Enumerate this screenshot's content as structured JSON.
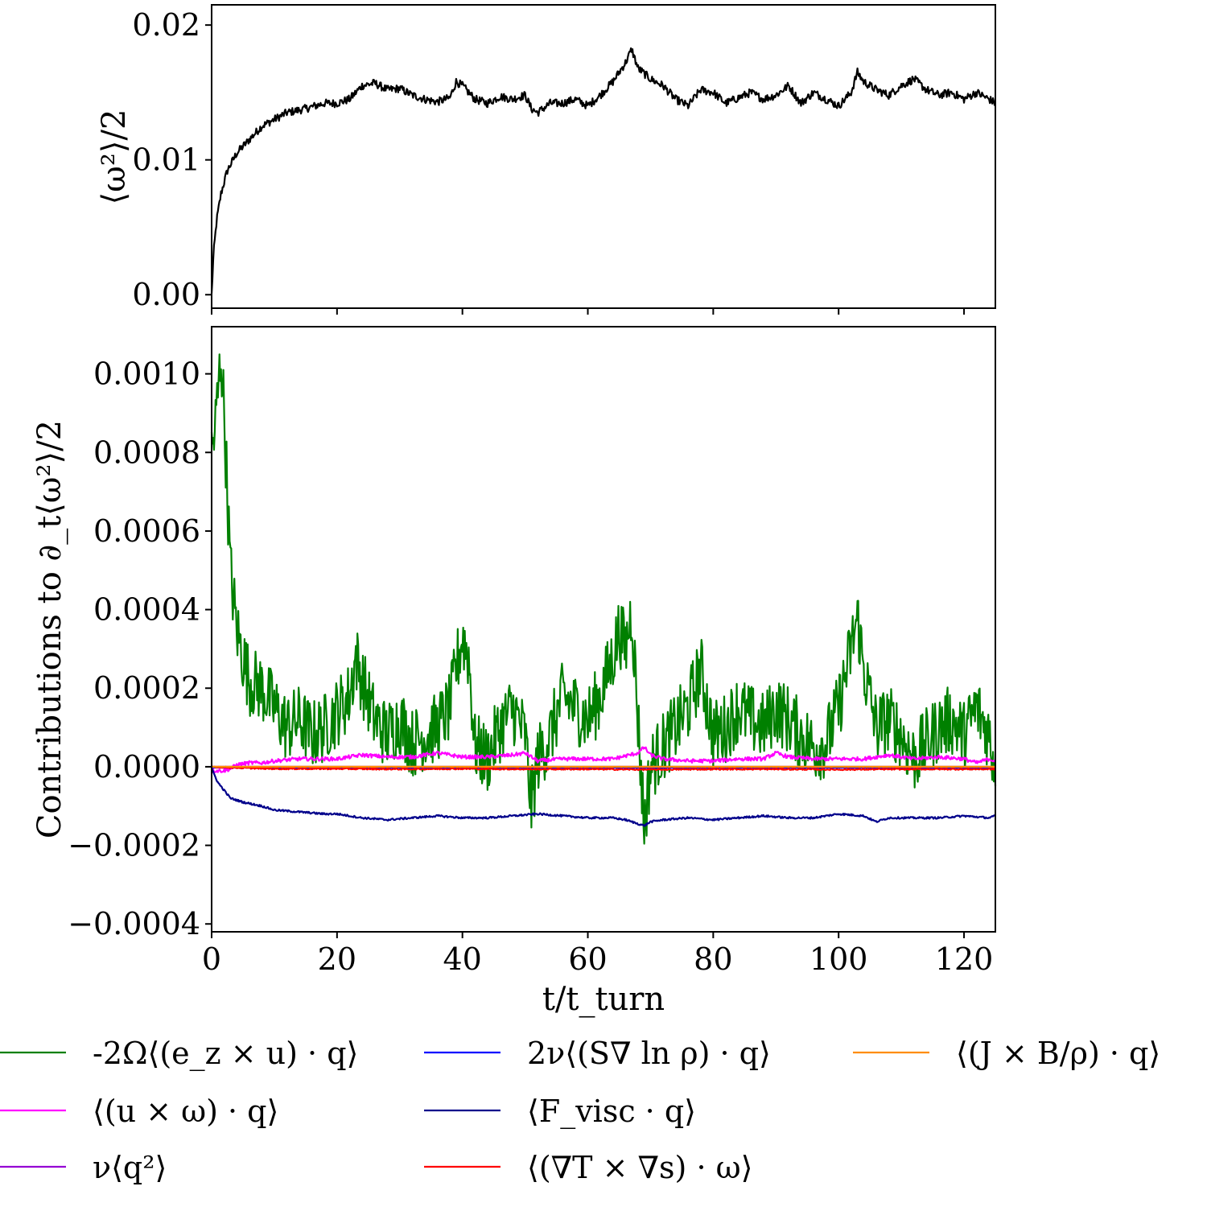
{
  "chart_data": [
    {
      "type": "line",
      "panel": "top",
      "ylabel": "⟨ω²⟩/2",
      "xlim": [
        0,
        125
      ],
      "ylim": [
        -0.001,
        0.0215
      ],
      "yticks": [
        0.0,
        0.01,
        0.02
      ],
      "ytick_labels": [
        "0.00",
        "0.01",
        "0.02"
      ],
      "xticks": [
        0,
        20,
        40,
        60,
        80,
        100,
        120
      ],
      "show_xtick_labels": false,
      "series": [
        {
          "name": "⟨ω²⟩/2",
          "color": "#000000",
          "noise": 0.0005,
          "x": [
            0,
            0.3,
            0.8,
            1.5,
            2.5,
            4,
            6,
            8,
            10,
            12,
            15,
            18,
            20,
            22,
            24,
            26,
            28,
            30,
            32,
            34,
            36,
            38,
            39,
            40,
            42,
            44,
            46,
            48,
            50,
            51,
            52,
            54,
            56,
            58,
            60,
            62,
            64,
            66,
            67,
            68,
            70,
            72,
            74,
            76,
            78,
            80,
            82,
            84,
            86,
            88,
            90,
            92,
            94,
            96,
            98,
            100,
            102,
            103,
            104,
            106,
            108,
            110,
            112,
            114,
            116,
            118,
            120,
            122,
            124,
            125
          ],
          "values": [
            0.0,
            0.003,
            0.0055,
            0.0075,
            0.0092,
            0.0105,
            0.0115,
            0.0125,
            0.013,
            0.0135,
            0.0138,
            0.0142,
            0.0142,
            0.0145,
            0.0155,
            0.0157,
            0.0152,
            0.0153,
            0.0148,
            0.0145,
            0.0143,
            0.0146,
            0.0158,
            0.0155,
            0.0145,
            0.0142,
            0.0147,
            0.0145,
            0.0148,
            0.0138,
            0.0135,
            0.0142,
            0.0142,
            0.0145,
            0.014,
            0.0148,
            0.0158,
            0.0172,
            0.0182,
            0.0168,
            0.016,
            0.0155,
            0.0145,
            0.014,
            0.0152,
            0.015,
            0.0142,
            0.0146,
            0.015,
            0.0145,
            0.0148,
            0.0155,
            0.0142,
            0.015,
            0.0145,
            0.014,
            0.015,
            0.0165,
            0.0158,
            0.0152,
            0.0148,
            0.0155,
            0.016,
            0.0152,
            0.0148,
            0.015,
            0.0145,
            0.015,
            0.0145,
            0.0142
          ]
        }
      ]
    },
    {
      "type": "line",
      "panel": "bottom",
      "xlabel": "t/t_turn",
      "ylabel": "Contributions to ∂_t⟨ω²⟩/2",
      "xlim": [
        0,
        125
      ],
      "ylim": [
        -0.00042,
        0.00112
      ],
      "yticks": [
        -0.0004,
        -0.0002,
        0.0,
        0.0002,
        0.0004,
        0.0006,
        0.0008,
        0.001
      ],
      "ytick_labels": [
        "−0.0004",
        "−0.0002",
        "0.0000",
        "0.0002",
        "0.0004",
        "0.0006",
        "0.0008",
        "0.0010"
      ],
      "xticks": [
        0,
        20,
        40,
        60,
        80,
        100,
        120
      ],
      "xtick_labels": [
        "0",
        "20",
        "40",
        "60",
        "80",
        "100",
        "120"
      ],
      "series": [
        {
          "name": "-2Ω⟨(e_z × u) · q⟩",
          "color": "#008000",
          "noise": 0.00015,
          "x": [
            0,
            0.5,
            1,
            1.5,
            2,
            2.5,
            3,
            4,
            5,
            6,
            8,
            10,
            12,
            14,
            16,
            18,
            20,
            22,
            23,
            24,
            26,
            28,
            30,
            32,
            34,
            36,
            38,
            39,
            40,
            41,
            42,
            44,
            46,
            48,
            50,
            51,
            52,
            54,
            56,
            58,
            60,
            62,
            64,
            65,
            66,
            67,
            68,
            69,
            70,
            72,
            74,
            76,
            78,
            80,
            82,
            84,
            86,
            88,
            90,
            92,
            94,
            96,
            98,
            100,
            102,
            103,
            104,
            106,
            108,
            110,
            112,
            114,
            116,
            118,
            120,
            122,
            124,
            125
          ],
          "values": [
            0.0008,
            0.00085,
            0.00095,
            0.00105,
            0.0009,
            0.0007,
            0.0005,
            0.00035,
            0.00028,
            0.00022,
            0.0002,
            0.00015,
            0.0001,
            0.00012,
            8e-05,
            0.0001,
            0.00014,
            0.00018,
            0.00028,
            0.00022,
            0.00012,
            8e-05,
            0.00012,
            6e-05,
            8e-05,
            0.0001,
            0.00015,
            0.00025,
            0.00033,
            0.00028,
            5e-05,
            2e-05,
            0.0001,
            0.00015,
            8e-05,
            -0.0001,
            2e-05,
            8e-05,
            0.00018,
            0.00015,
            0.00012,
            0.00018,
            0.00028,
            0.00035,
            0.0003,
            0.0004,
            0.00012,
            -0.00015,
            0.0,
            5e-05,
            0.0001,
            0.00015,
            0.00025,
            8e-05,
            0.0001,
            0.00015,
            0.00012,
            0.0001,
            0.00015,
            0.00012,
            8e-05,
            5e-05,
            6e-05,
            0.00015,
            0.0003,
            0.00038,
            0.00025,
            0.0001,
            0.00012,
            8e-05,
            2e-05,
            6e-05,
            0.0001,
            0.00012,
            8e-05,
            0.00015,
            8e-05,
            0.0
          ]
        },
        {
          "name": "⟨(u × ω) · q⟩",
          "color": "#ff00ff",
          "noise": 8e-06,
          "x": [
            0,
            1,
            2,
            3,
            4,
            6,
            8,
            10,
            14,
            20,
            24,
            28,
            32,
            36,
            40,
            44,
            48,
            50,
            52,
            56,
            60,
            64,
            68,
            69,
            70,
            72,
            76,
            80,
            84,
            88,
            90,
            92,
            96,
            100,
            104,
            108,
            112,
            116,
            120,
            122,
            124,
            125
          ],
          "values": [
            -1e-05,
            -1e-05,
            -1e-05,
            -5e-06,
            5e-06,
            1e-05,
            1e-05,
            1.5e-05,
            2e-05,
            2e-05,
            3e-05,
            2.5e-05,
            2.5e-05,
            3.5e-05,
            2.5e-05,
            2.5e-05,
            3e-05,
            3.5e-05,
            1.5e-05,
            2e-05,
            2e-05,
            2e-05,
            3.5e-05,
            5e-05,
            3e-05,
            2e-05,
            1.5e-05,
            1.5e-05,
            2e-05,
            2e-05,
            3.5e-05,
            2.5e-05,
            2e-05,
            2e-05,
            2e-05,
            3e-05,
            2e-05,
            2.5e-05,
            2e-05,
            1e-05,
            2e-05,
            1.5e-05
          ]
        },
        {
          "name": "ν⟨q²⟩",
          "color": "#9400d3",
          "noise": 0.0,
          "x": [
            0,
            125
          ],
          "values": [
            0.0,
            0.0
          ]
        },
        {
          "name": "2ν⟨(S∇ ln ρ) · q⟩",
          "color": "#0000ff",
          "noise": 0.0,
          "x": [
            0,
            125
          ],
          "values": [
            -2e-06,
            -2e-06
          ]
        },
        {
          "name": "⟨F_visc · q⟩",
          "color": "#00008b",
          "noise": 4e-06,
          "x": [
            0,
            1,
            2,
            3,
            5,
            8,
            10,
            14,
            18,
            20,
            24,
            28,
            32,
            36,
            40,
            44,
            48,
            52,
            56,
            60,
            64,
            66,
            68,
            69,
            70,
            72,
            76,
            80,
            84,
            88,
            92,
            96,
            100,
            104,
            106,
            108,
            112,
            116,
            120,
            124,
            125
          ],
          "values": [
            -5e-06,
            -4e-05,
            -6e-05,
            -8e-05,
            -9e-05,
            -0.0001,
            -0.00011,
            -0.000115,
            -0.00012,
            -0.00012,
            -0.00013,
            -0.000135,
            -0.00013,
            -0.000125,
            -0.00013,
            -0.00013,
            -0.000125,
            -0.00012,
            -0.000125,
            -0.00013,
            -0.00013,
            -0.000135,
            -0.000145,
            -0.00015,
            -0.00014,
            -0.000135,
            -0.00013,
            -0.000135,
            -0.00013,
            -0.000125,
            -0.00013,
            -0.00013,
            -0.00012,
            -0.000125,
            -0.00014,
            -0.00013,
            -0.00013,
            -0.00013,
            -0.000125,
            -0.00013,
            -0.000125
          ]
        },
        {
          "name": "⟨(∇T × ∇s) · ω⟩",
          "color": "#ff0000",
          "noise": 3e-06,
          "x": [
            0,
            5,
            10,
            20,
            30,
            40,
            50,
            60,
            70,
            80,
            90,
            100,
            110,
            120,
            125
          ],
          "values": [
            0.0,
            -3e-06,
            -5e-06,
            -5e-06,
            -6e-06,
            -5e-06,
            -6e-06,
            -6e-06,
            -7e-06,
            -6e-06,
            -6e-06,
            -7e-06,
            -6e-06,
            -6e-06,
            -6e-06
          ]
        },
        {
          "name": "⟨(J × B/ρ) · q⟩",
          "color": "#ff8c00",
          "noise": 0.0,
          "x": [
            0,
            125
          ],
          "values": [
            0.0,
            0.0
          ]
        }
      ],
      "legend_position": "below"
    }
  ]
}
